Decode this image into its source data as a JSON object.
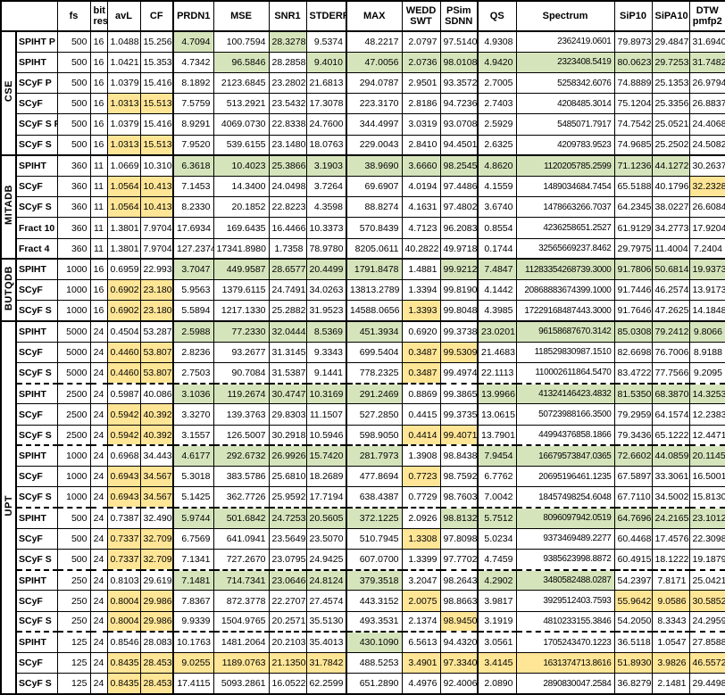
{
  "chart_data": {
    "type": "table",
    "columns": [
      "fs",
      "bit\nres",
      "avL",
      "CF",
      "PRDN1",
      "MSE",
      "SNR1",
      "STDERR",
      "MAX",
      "WEDD\nSWT",
      "PSim\nSDNN",
      "QS",
      "Spectrum",
      "SiP10",
      "SiPA10",
      "DTW\npmfp2"
    ],
    "metric_keys": [
      "avl",
      "cf",
      "prdn1",
      "mse",
      "snr1",
      "stderr",
      "max",
      "wedd-swt",
      "psim-sdnn",
      "qs",
      "spectrum",
      "sip10",
      "sipa10",
      "dtw-pmfp2"
    ],
    "highlight_colors": {
      "g": "#d6e4bc",
      "y": "#ffe596"
    },
    "thick_left_cols": [
      2,
      6,
      9
    ],
    "groups": [
      {
        "label": "CSE",
        "rows": [
          {
            "name": "SPIHT P",
            "fs": "500",
            "bits": "16",
            "values": [
              "1.0488",
              "15.2562",
              "4.7094",
              "100.7594",
              "28.3278",
              "9.5374",
              "48.2217",
              "2.0797",
              "97.5140",
              "4.9308",
              "2362419.0601",
              "79.8973",
              "29.4847",
              "31.6940"
            ],
            "hl": "..g.g.........",
            "dashed": false
          },
          {
            "name": "SPIHT",
            "fs": "500",
            "bits": "16",
            "values": [
              "1.0421",
              "15.3539",
              "4.7342",
              "96.5846",
              "28.2858",
              "9.4010",
              "47.0056",
              "2.0736",
              "98.0108",
              "4.9420",
              "2323408.5419",
              "80.0623",
              "29.7253",
              "31.7482"
            ],
            "hl": "...g.ggggggggg",
            "dashed": false
          },
          {
            "name": "SCyF P",
            "fs": "500",
            "bits": "16",
            "values": [
              "1.0379",
              "15.4164",
              "8.1892",
              "2123.6845",
              "23.2802",
              "21.6813",
              "294.0787",
              "2.9501",
              "93.3572",
              "2.7005",
              "5258342.6076",
              "74.8889",
              "25.1353",
              "26.9794"
            ],
            "hl": "..............",
            "dashed": false
          },
          {
            "name": "SCyF",
            "fs": "500",
            "bits": "16",
            "values": [
              "1.0313",
              "15.5138",
              "7.5759",
              "513.2921",
              "23.5432",
              "17.3078",
              "223.3170",
              "2.8186",
              "94.7236",
              "2.7403",
              "4208485.3014",
              "75.1204",
              "25.3356",
              "26.8837"
            ],
            "hl": "yy............",
            "dashed": false
          },
          {
            "name": "SCyF S P",
            "fs": "500",
            "bits": "16",
            "values": [
              "1.0379",
              "15.4164",
              "8.9291",
              "4069.0730",
              "22.8338",
              "24.7600",
              "344.4997",
              "3.0319",
              "93.0708",
              "2.5929",
              "5485071.7917",
              "74.7542",
              "25.0521",
              "24.4068"
            ],
            "hl": "..............",
            "dashed": false
          },
          {
            "name": "SCyF S",
            "fs": "500",
            "bits": "16",
            "values": [
              "1.0313",
              "15.5138",
              "7.9520",
              "539.6155",
              "23.1480",
              "18.0763",
              "229.0043",
              "2.8410",
              "94.4501",
              "2.6325",
              "4209783.9523",
              "74.9685",
              "25.2502",
              "24.5082"
            ],
            "hl": "yy............",
            "dashed": false
          }
        ]
      },
      {
        "label": "MITADB",
        "rows": [
          {
            "name": "SPIHT",
            "fs": "360",
            "bits": "11",
            "values": [
              "1.0669",
              "10.3106",
              "6.3618",
              "10.4023",
              "25.3866",
              "3.1903",
              "38.9690",
              "3.6660",
              "98.2545",
              "4.8620",
              "1120205785.2599",
              "71.1236",
              "44.1272",
              "30.2637"
            ],
            "hl": "..ggggggggggg.",
            "dashed": false
          },
          {
            "name": "SCyF",
            "fs": "360",
            "bits": "11",
            "values": [
              "1.0564",
              "10.4131",
              "7.1453",
              "14.3400",
              "24.0498",
              "3.7264",
              "69.6907",
              "4.0194",
              "97.4486",
              "4.1559",
              "1489034684.7454",
              "65.5188",
              "40.1796",
              "32.2328"
            ],
            "hl": "yy...........y",
            "dashed": false
          },
          {
            "name": "SCyF S",
            "fs": "360",
            "bits": "11",
            "values": [
              "1.0564",
              "10.4131",
              "8.2330",
              "20.1852",
              "22.8223",
              "4.3598",
              "88.8274",
              "4.1631",
              "97.4802",
              "3.6740",
              "1478663266.7037",
              "64.2345",
              "38.0227",
              "26.6084"
            ],
            "hl": "yy............",
            "dashed": false
          },
          {
            "name": "Fract 10",
            "fs": "360",
            "bits": "11",
            "values": [
              "1.3801",
              "7.9704",
              "17.6934",
              "169.6435",
              "16.4466",
              "10.3373",
              "570.8439",
              "4.7123",
              "96.2083",
              "0.8554",
              "4236258651.2527",
              "61.9129",
              "34.2773",
              "17.9204"
            ],
            "hl": "..............",
            "dashed": false
          },
          {
            "name": "Fract 4",
            "fs": "360",
            "bits": "11",
            "values": [
              "1.3801",
              "7.9704",
              "127.2374",
              "17341.8980",
              "1.7358",
              "78.9780",
              "8205.0611",
              "40.2822",
              "49.9718",
              "0.1744",
              "32565669237.8462",
              "29.7975",
              "11.4004",
              "7.2404"
            ],
            "hl": "..............",
            "dashed": false
          }
        ]
      },
      {
        "label": "BUTQDB",
        "rows": [
          {
            "name": "SPIHT",
            "fs": "1000",
            "bits": "16",
            "values": [
              "0.6959",
              "22.9934",
              "3.7047",
              "449.9587",
              "28.6577",
              "20.4499",
              "1791.8478",
              "1.4881",
              "99.9212",
              "7.4847",
              "11283354268739.3000",
              "91.7806",
              "50.6814",
              "19.9373"
            ],
            "hl": "..ggggg.gggggg",
            "dashed": false
          },
          {
            "name": "SCyF",
            "fs": "1000",
            "bits": "16",
            "values": [
              "0.6902",
              "23.1806",
              "5.9563",
              "1379.6115",
              "24.7491",
              "34.0263",
              "13813.2789",
              "1.3394",
              "99.8190",
              "4.1442",
              "20868883674399.1000",
              "91.7446",
              "46.2574",
              "13.9173"
            ],
            "hl": "yy............",
            "dashed": false
          },
          {
            "name": "SCyF S",
            "fs": "1000",
            "bits": "16",
            "values": [
              "0.6902",
              "23.1806",
              "5.5894",
              "1217.1330",
              "25.2882",
              "31.9523",
              "14588.0656",
              "1.3393",
              "99.8048",
              "4.3985",
              "17229168487443.3000",
              "91.7646",
              "47.2625",
              "14.1848"
            ],
            "hl": "yy.....y......",
            "dashed": false
          }
        ]
      },
      {
        "label": "UPT",
        "rows": [
          {
            "name": "SPIHT",
            "fs": "5000",
            "bits": "24",
            "values": [
              "0.4504",
              "53.2870",
              "2.5988",
              "77.2330",
              "32.0444",
              "8.5369",
              "451.3934",
              "0.6920",
              "99.3738",
              "23.0201",
              "96158687670.3142",
              "85.0308",
              "79.2412",
              "9.8066"
            ],
            "hl": "..ggggg..ggggg",
            "dashed": false
          },
          {
            "name": "SCyF",
            "fs": "5000",
            "bits": "24",
            "values": [
              "0.4460",
              "53.8075",
              "2.8236",
              "93.2677",
              "31.3145",
              "9.3343",
              "699.5404",
              "0.3487",
              "99.5309",
              "21.4683",
              "118529830987.1510",
              "82.6698",
              "76.7006",
              "8.9188"
            ],
            "hl": "yy.....yy.....",
            "dashed": false
          },
          {
            "name": "SCyF S",
            "fs": "5000",
            "bits": "24",
            "values": [
              "0.4460",
              "53.8075",
              "2.7503",
              "90.7084",
              "31.5387",
              "9.1441",
              "778.2325",
              "0.3487",
              "99.4974",
              "22.1113",
              "110002611864.5470",
              "83.4722",
              "77.7566",
              "9.2095"
            ],
            "hl": "yy.....y......",
            "dashed": false
          },
          {
            "name": "SPIHT",
            "fs": "2500",
            "bits": "24",
            "values": [
              "0.5987",
              "40.0862",
              "3.1036",
              "119.2674",
              "30.4747",
              "10.3169",
              "291.2469",
              "0.8869",
              "99.3865",
              "13.9966",
              "41324146423.4832",
              "81.5350",
              "68.3870",
              "14.3253"
            ],
            "hl": "..ggggg..ggggg",
            "dashed": true
          },
          {
            "name": "SCyF",
            "fs": "2500",
            "bits": "24",
            "values": [
              "0.5942",
              "40.3924",
              "3.3270",
              "139.3763",
              "29.8303",
              "11.1507",
              "527.2850",
              "0.4415",
              "99.3735",
              "13.0615",
              "50723988166.3500",
              "79.2959",
              "64.1574",
              "12.2383"
            ],
            "hl": "yy............",
            "dashed": false
          },
          {
            "name": "SCyF S",
            "fs": "2500",
            "bits": "24",
            "values": [
              "0.5942",
              "40.3924",
              "3.1557",
              "126.5007",
              "30.2918",
              "10.5946",
              "598.9050",
              "0.4414",
              "99.4071",
              "13.7901",
              "44994376858.1866",
              "79.3436",
              "65.1222",
              "12.4471"
            ],
            "hl": "yy.....yy.....",
            "dashed": false
          },
          {
            "name": "SPIHT",
            "fs": "1000",
            "bits": "24",
            "values": [
              "0.6968",
              "34.4434",
              "4.6177",
              "292.6732",
              "26.9926",
              "15.7420",
              "281.7973",
              "1.3908",
              "98.8438",
              "7.9454",
              "16679573847.0365",
              "72.6602",
              "44.0859",
              "20.1145"
            ],
            "hl": "..ggggg..ggggg",
            "dashed": true
          },
          {
            "name": "SCyF",
            "fs": "1000",
            "bits": "24",
            "values": [
              "0.6943",
              "34.5679",
              "5.3018",
              "383.5786",
              "25.6810",
              "18.2689",
              "477.8694",
              "0.7723",
              "98.7592",
              "6.7762",
              "20695196461.1235",
              "67.5897",
              "33.3061",
              "16.5001"
            ],
            "hl": "yy.....y......",
            "dashed": false
          },
          {
            "name": "SCyF S",
            "fs": "1000",
            "bits": "24",
            "values": [
              "0.6943",
              "34.5679",
              "5.1425",
              "362.7726",
              "25.9592",
              "17.7194",
              "638.4387",
              "0.7729",
              "98.7603",
              "7.0042",
              "18457498254.6048",
              "67.7110",
              "34.5002",
              "15.8130"
            ],
            "hl": "yy............",
            "dashed": false
          },
          {
            "name": "SPIHT",
            "fs": "500",
            "bits": "24",
            "values": [
              "0.7387",
              "32.4900",
              "5.9744",
              "501.6842",
              "24.7253",
              "20.5605",
              "372.1225",
              "2.0926",
              "98.8132",
              "5.7512",
              "8096097942.0519",
              "64.7696",
              "24.2165",
              "23.1012"
            ],
            "hl": "..ggggg.gggggg",
            "dashed": true
          },
          {
            "name": "SCyF",
            "fs": "500",
            "bits": "24",
            "values": [
              "0.7337",
              "32.7099",
              "6.7569",
              "641.0941",
              "23.5649",
              "23.5070",
              "510.7945",
              "1.3308",
              "97.8098",
              "5.0234",
              "9373469489.2277",
              "60.4468",
              "17.4576",
              "22.3098"
            ],
            "hl": "yy.....y......",
            "dashed": false
          },
          {
            "name": "SCyF S",
            "fs": "500",
            "bits": "24",
            "values": [
              "0.7337",
              "32.7099",
              "7.1341",
              "727.2670",
              "23.0795",
              "24.9425",
              "607.0700",
              "1.3399",
              "97.7702",
              "4.7459",
              "9385623998.8872",
              "60.4915",
              "18.1222",
              "19.1879"
            ],
            "hl": "yy............",
            "dashed": false
          },
          {
            "name": "SPIHT",
            "fs": "250",
            "bits": "24",
            "values": [
              "0.8103",
              "29.6199",
              "7.1481",
              "714.7341",
              "23.0646",
              "24.8124",
              "379.3518",
              "3.2047",
              "98.2643",
              "4.2902",
              "3480582488.0287",
              "54.2397",
              "7.8171",
              "25.0421"
            ],
            "hl": "..ggggg..gg...",
            "dashed": true
          },
          {
            "name": "SCyF",
            "fs": "250",
            "bits": "24",
            "values": [
              "0.8004",
              "29.9867",
              "7.8367",
              "872.3778",
              "22.2707",
              "27.4574",
              "443.3152",
              "2.0075",
              "98.8663",
              "3.9817",
              "3929512403.7593",
              "55.9642",
              "9.0586",
              "30.5852"
            ],
            "hl": "yy.....y...yyy",
            "dashed": false
          },
          {
            "name": "SCyF S",
            "fs": "250",
            "bits": "24",
            "values": [
              "0.8004",
              "29.9867",
              "9.9339",
              "1504.9765",
              "20.2571",
              "35.5130",
              "493.3531",
              "2.1374",
              "98.9450",
              "3.1919",
              "4810233155.3846",
              "54.2050",
              "8.3343",
              "24.2959"
            ],
            "hl": "yy......y.....",
            "dashed": false
          },
          {
            "name": "SPIHT",
            "fs": "125",
            "bits": "24",
            "values": [
              "0.8546",
              "28.0831",
              "10.1763",
              "1481.2064",
              "20.2103",
              "35.4013",
              "430.1090",
              "6.5613",
              "94.4320",
              "3.0561",
              "1705243470.1223",
              "36.5118",
              "1.0547",
              "27.8588"
            ],
            "hl": "......g.......",
            "dashed": true
          },
          {
            "name": "SCyF",
            "fs": "125",
            "bits": "24",
            "values": [
              "0.8435",
              "28.4532",
              "9.0255",
              "1189.0763",
              "21.1350",
              "31.7842",
              "488.5253",
              "3.4901",
              "97.3340",
              "3.4145",
              "1631374713.8616",
              "51.8930",
              "3.9826",
              "46.5572"
            ],
            "hl": "yyyyyy.yyyyyyy",
            "dashed": false
          },
          {
            "name": "SCyF S",
            "fs": "125",
            "bits": "24",
            "values": [
              "0.8435",
              "28.4532",
              "17.4115",
              "5093.2861",
              "16.0522",
              "62.2599",
              "651.2890",
              "4.4976",
              "92.4006",
              "2.0890",
              "2890830047.2584",
              "36.8279",
              "2.1481",
              "29.4498"
            ],
            "hl": "yy............",
            "dashed": false
          }
        ]
      }
    ]
  }
}
